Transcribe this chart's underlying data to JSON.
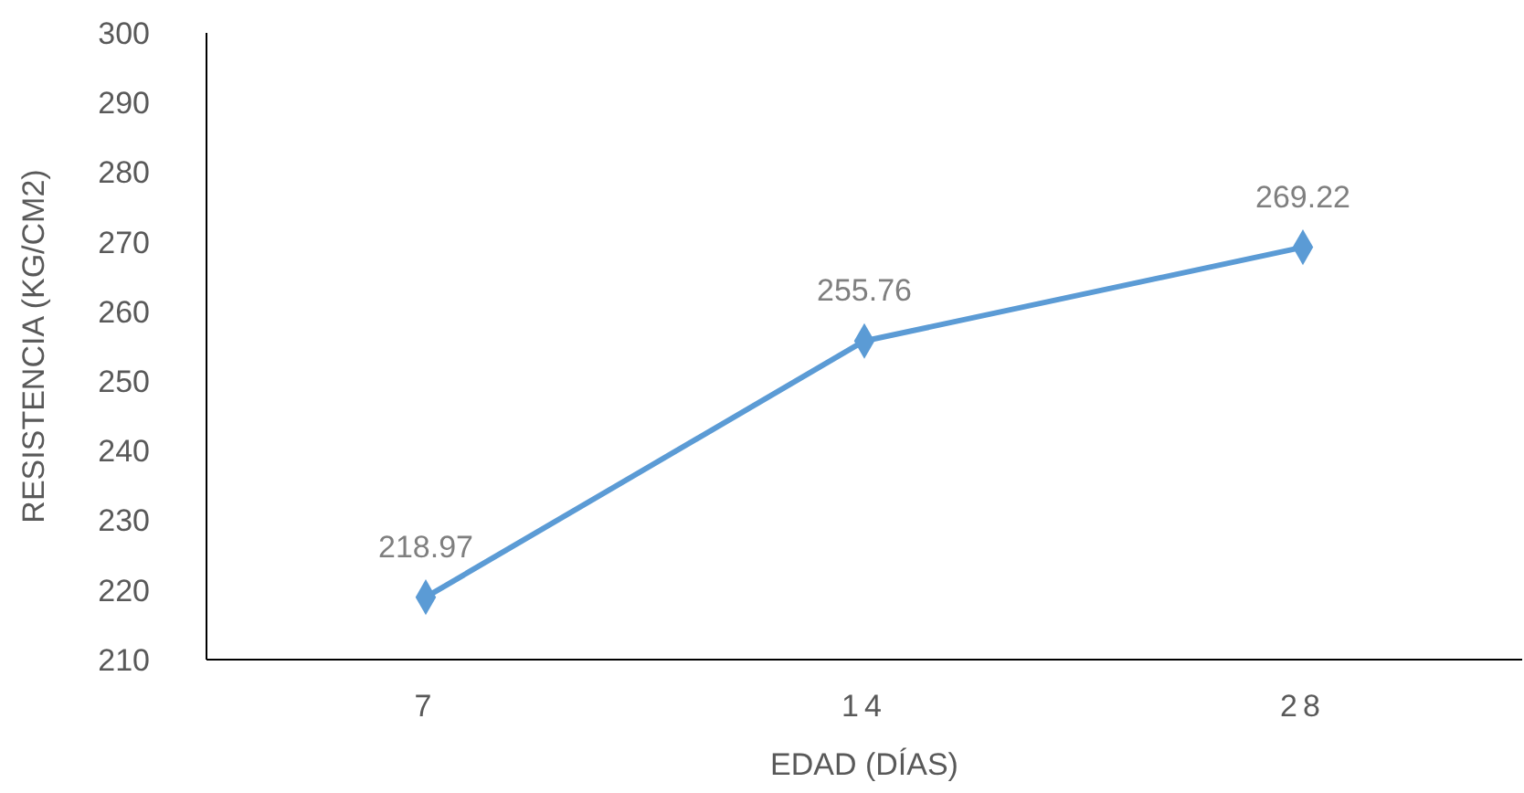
{
  "chart_data": {
    "type": "line",
    "xlabel": "EDAD (DÍAS)",
    "ylabel": "RESISTENCIA (KG/CM2)",
    "categories": [
      "7",
      "14",
      "28"
    ],
    "series": [
      {
        "color": "#5b9bd5",
        "values": [
          218.97,
          255.76,
          269.22
        ]
      }
    ],
    "ylim": [
      210,
      300
    ],
    "yticks": [
      210,
      220,
      230,
      240,
      250,
      260,
      270,
      280,
      290,
      300
    ],
    "grid": false,
    "marker": "diamond",
    "line_style": "solid",
    "data_labels": true
  }
}
